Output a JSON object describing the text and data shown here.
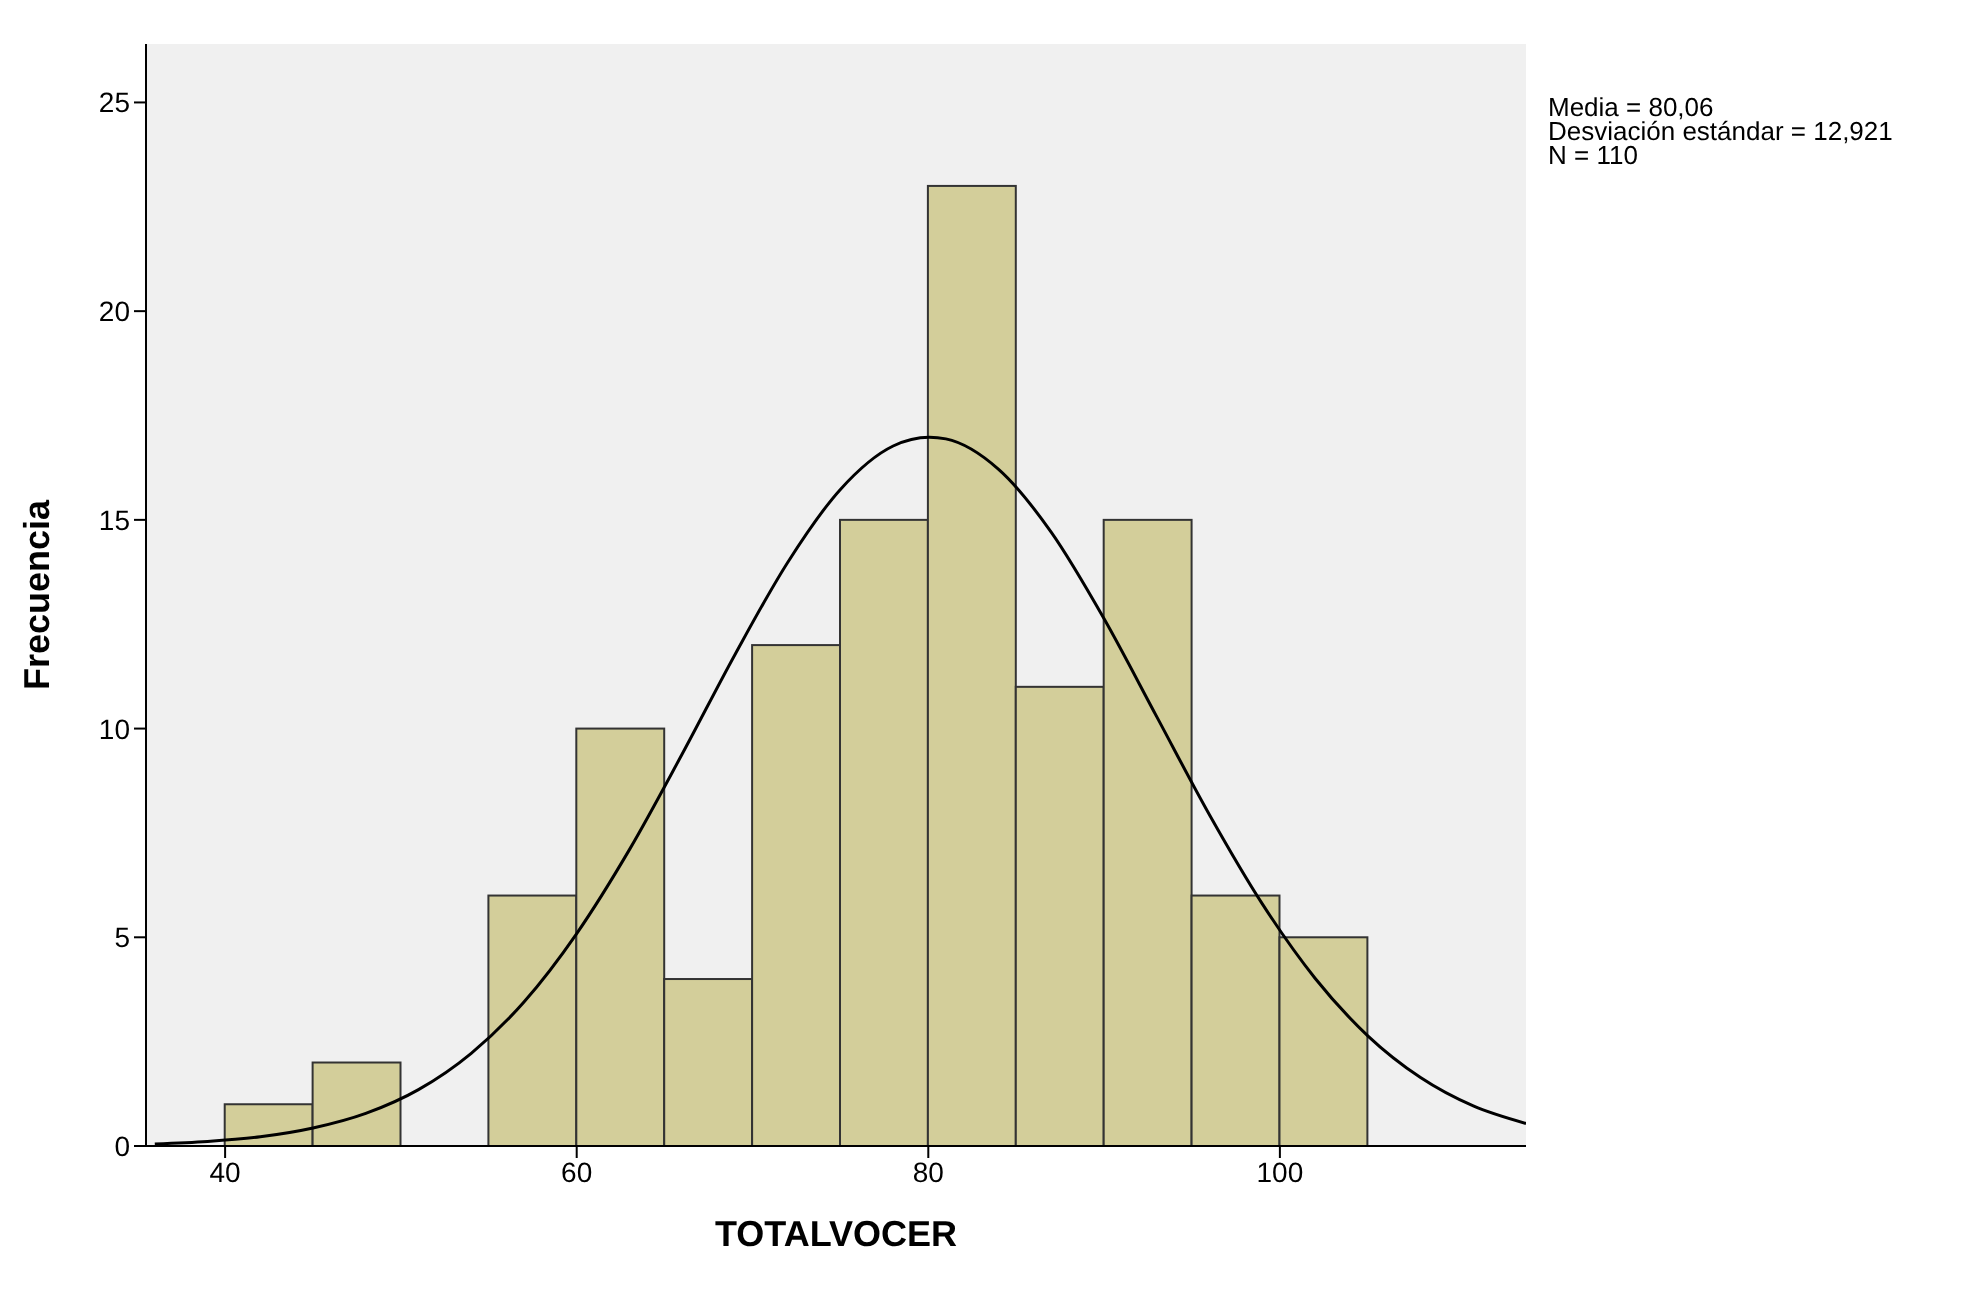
{
  "chart_data": {
    "type": "histogram",
    "xlabel": "TOTALVOCER",
    "ylabel": "Frecuencia",
    "annotations": [
      "Media = 80,06",
      "Desviación estándar = 12,921",
      "N = 110"
    ],
    "bins": [
      40,
      45,
      50,
      55,
      60,
      65,
      70,
      75,
      80,
      85,
      90,
      95,
      100,
      105
    ],
    "values": [
      1,
      2,
      0,
      6,
      10,
      4,
      12,
      15,
      23,
      11,
      15,
      6,
      5
    ],
    "color": "#d3ce9a",
    "series": [
      {
        "type": "line",
        "color": "#000000",
        "x": [
          36,
          39,
          42,
          45,
          48,
          51,
          54,
          57,
          60,
          63,
          66,
          69,
          72,
          75,
          78,
          80.06,
          81,
          84,
          87,
          90,
          93,
          96,
          99,
          102,
          105,
          108,
          111,
          114
        ],
        "values": [
          0.05,
          0.11,
          0.22,
          0.43,
          0.78,
          1.35,
          2.22,
          3.45,
          5.09,
          7.1,
          9.39,
          11.77,
          13.98,
          15.73,
          16.77,
          16.98,
          16.94,
          16.21,
          14.7,
          12.63,
          10.28,
          7.93,
          5.8,
          4.02,
          2.64,
          1.64,
          0.96,
          0.54
        ]
      }
    ],
    "xlim": [
      35.5,
      114
    ],
    "xticks": [
      40,
      60,
      80,
      100
    ],
    "ylim": [
      0,
      26.4
    ],
    "yticks": [
      0,
      5,
      10,
      15,
      20,
      25
    ]
  }
}
